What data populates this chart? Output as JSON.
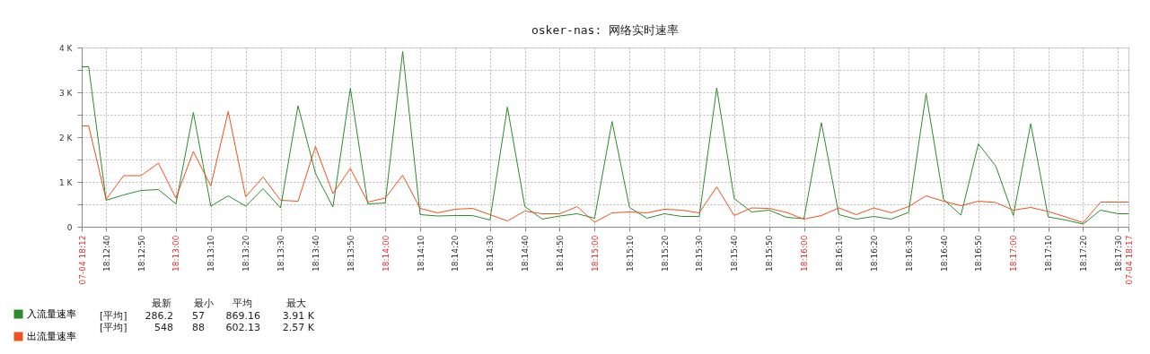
{
  "chart_data": {
    "type": "line",
    "title": "osker-nas: 网络实时速率",
    "x": [
      18.209167,
      18.209722,
      18.211111,
      18.2125,
      18.213889,
      18.215278,
      18.216667,
      18.218056,
      18.219444,
      18.220833,
      18.222222,
      18.223611,
      18.225,
      18.226389,
      18.227778,
      18.229167,
      18.230556,
      18.231944,
      18.233333,
      18.234722,
      18.236111,
      18.2375,
      18.238889,
      18.240278,
      18.241667,
      18.243056,
      18.244444,
      18.245833,
      18.247222,
      18.248611,
      18.25,
      18.251389,
      18.252778,
      18.254167,
      18.255556,
      18.256944,
      18.258333,
      18.259722,
      18.261111,
      18.2625,
      18.263889,
      18.265278,
      18.266667,
      18.268056,
      18.269444,
      18.270833,
      18.272222,
      18.273611,
      18.275,
      18.276389,
      18.277778,
      18.279167,
      18.280556,
      18.281944,
      18.283333,
      18.284722,
      18.286111,
      18.2875,
      18.288889,
      18.290278,
      18.291667,
      18.2925
    ],
    "series": [
      {
        "name": "入流量速率",
        "color": "#2b8c2b",
        "values": [
          3570,
          3570,
          590,
          710,
          810,
          830,
          510,
          2550,
          460,
          690,
          460,
          850,
          420,
          2700,
          1190,
          440,
          3090,
          510,
          530,
          3910,
          270,
          240,
          250,
          250,
          150,
          2670,
          450,
          170,
          240,
          290,
          190,
          2350,
          430,
          190,
          290,
          230,
          230,
          3100,
          630,
          330,
          370,
          210,
          180,
          2320,
          270,
          170,
          230,
          170,
          320,
          2970,
          610,
          260,
          1850,
          1350,
          250,
          2300,
          220,
          150,
          60,
          370,
          290,
          290
        ]
      },
      {
        "name": "出流量速率",
        "color": "#f0501c",
        "values": [
          2250,
          2250,
          610,
          1140,
          1140,
          1420,
          640,
          1680,
          910,
          2570,
          670,
          1110,
          590,
          570,
          1790,
          740,
          1300,
          550,
          640,
          1150,
          410,
          310,
          390,
          410,
          270,
          130,
          350,
          290,
          290,
          450,
          100,
          310,
          330,
          310,
          390,
          370,
          310,
          890,
          250,
          420,
          410,
          320,
          170,
          250,
          420,
          270,
          420,
          310,
          450,
          690,
          570,
          470,
          570,
          540,
          370,
          430,
          340,
          220,
          90,
          550,
          550,
          550
        ]
      }
    ],
    "xlim": [
      18.209167,
      18.2925
    ],
    "xticks": [
      {
        "value": 18.209167,
        "label": "07-04 18:12"
      },
      {
        "value": 18.211111,
        "label": "18:12:40"
      },
      {
        "value": 18.213889,
        "label": "18:12:50"
      },
      {
        "value": 18.216667,
        "label": "18:13:00"
      },
      {
        "value": 18.219444,
        "label": "18:13:10"
      },
      {
        "value": 18.222222,
        "label": "18:13:20"
      },
      {
        "value": 18.225,
        "label": "18:13:30"
      },
      {
        "value": 18.227778,
        "label": "18:13:40"
      },
      {
        "value": 18.230556,
        "label": "18:13:50"
      },
      {
        "value": 18.233333,
        "label": "18:14:00"
      },
      {
        "value": 18.236111,
        "label": "18:14:10"
      },
      {
        "value": 18.238889,
        "label": "18:14:20"
      },
      {
        "value": 18.241667,
        "label": "18:14:30"
      },
      {
        "value": 18.244444,
        "label": "18:14:40"
      },
      {
        "value": 18.247222,
        "label": "18:14:50"
      },
      {
        "value": 18.25,
        "label": "18:15:00"
      },
      {
        "value": 18.252778,
        "label": "18:15:10"
      },
      {
        "value": 18.255556,
        "label": "18:15:20"
      },
      {
        "value": 18.258333,
        "label": "18:15:30"
      },
      {
        "value": 18.261111,
        "label": "18:15:40"
      },
      {
        "value": 18.263889,
        "label": "18:15:50"
      },
      {
        "value": 18.266667,
        "label": "18:16:00"
      },
      {
        "value": 18.269444,
        "label": "18:16:10"
      },
      {
        "value": 18.272222,
        "label": "18:16:20"
      },
      {
        "value": 18.275,
        "label": "18:16:30"
      },
      {
        "value": 18.277778,
        "label": "18:16:40"
      },
      {
        "value": 18.280556,
        "label": "18:16:50"
      },
      {
        "value": 18.283333,
        "label": "18:17:00"
      },
      {
        "value": 18.286111,
        "label": "18:17:10"
      },
      {
        "value": 18.288889,
        "label": "18:17:20"
      },
      {
        "value": 18.291667,
        "label": "18:17:30"
      },
      {
        "value": 18.2925,
        "label": "07-04 18:17"
      }
    ],
    "ylim": [
      0,
      4000
    ],
    "yticks": [
      0,
      {
        "value": 500,
        "label": null
      },
      {
        "value": 1000,
        "label": "1 K"
      },
      {
        "value": 1500,
        "label": null
      },
      {
        "value": 2000,
        "label": "2 K"
      },
      {
        "value": 2500,
        "label": null
      },
      {
        "value": 3000,
        "label": "3 K"
      },
      {
        "value": 3500,
        "label": null
      },
      {
        "value": 4000,
        "label": "4 K"
      }
    ],
    "grid": true,
    "line_style": "solid",
    "legend": "bottom left",
    "annotations": [
      "最新",
      "最小",
      "平均",
      "最大",
      "[平均]",
      "286.2",
      "57",
      "869.16",
      "3.91 K",
      "[平均]",
      "548",
      "88",
      "602.13",
      "2.57 K"
    ]
  }
}
